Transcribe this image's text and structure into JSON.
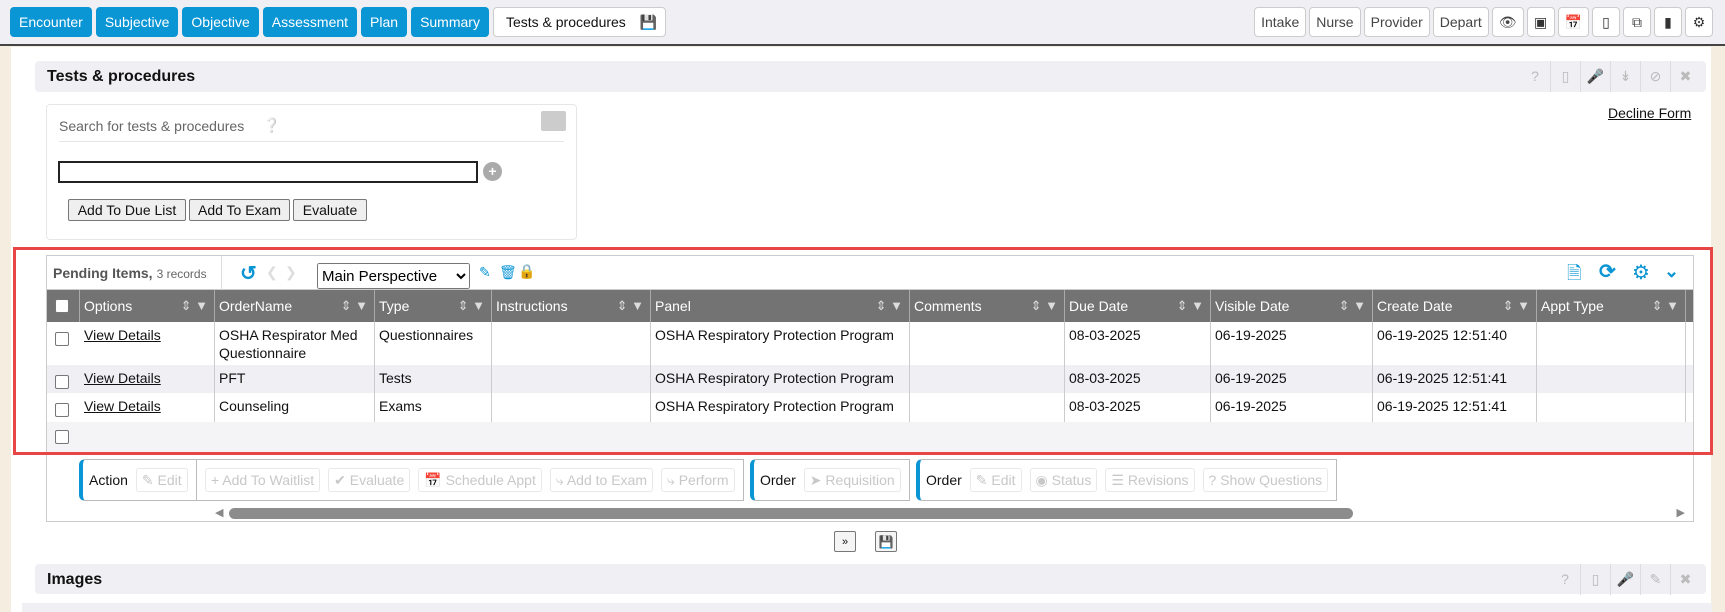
{
  "nav": {
    "tabs": [
      {
        "label": "Encounter"
      },
      {
        "label": "Subjective"
      },
      {
        "label": "Objective"
      },
      {
        "label": "Assessment"
      },
      {
        "label": "Plan"
      },
      {
        "label": "Summary"
      },
      {
        "label": "Tests & procedures"
      }
    ],
    "right_buttons": [
      {
        "label": "Intake"
      },
      {
        "label": "Nurse"
      },
      {
        "label": "Provider"
      },
      {
        "label": "Depart"
      }
    ],
    "right_icons": [
      "eye-icon",
      "archive-icon",
      "calendar-check-icon",
      "book-icon",
      "copy-icon",
      "bookmark-icon",
      "gears-icon"
    ]
  },
  "section": {
    "title": "Tests & procedures",
    "decline_link": "Decline Form",
    "icons": [
      "help-icon",
      "book-icon",
      "microphone-icon",
      "double-chevron-down-icon",
      "ban-icon",
      "close-icon"
    ]
  },
  "search": {
    "label": "Search for tests & procedures",
    "value": "",
    "buttons": [
      "Add To Due List",
      "Add To Exam",
      "Evaluate"
    ]
  },
  "grid": {
    "title": "Pending Items,",
    "count": "3 records",
    "perspective": "Main Perspective",
    "columns": [
      "Options",
      "OrderName",
      "Type",
      "Instructions",
      "Panel",
      "Comments",
      "Due Date",
      "Visible Date",
      "Create Date",
      "Appt Type"
    ],
    "rows": [
      [
        "View Details",
        "OSHA Respirator Med Questionnaire",
        "Questionnaires",
        "",
        "OSHA Respiratory Protection Program",
        "",
        "08-03-2025",
        "06-19-2025",
        "06-19-2025 12:51:40",
        ""
      ],
      [
        "View Details",
        "PFT",
        "Tests",
        "",
        "OSHA Respiratory Protection Program",
        "",
        "08-03-2025",
        "06-19-2025",
        "06-19-2025 12:51:41",
        ""
      ],
      [
        "View Details",
        "Counseling",
        "Exams",
        "",
        "OSHA Respiratory Protection Program",
        "",
        "08-03-2025",
        "06-19-2025",
        "06-19-2025 12:51:41",
        ""
      ]
    ]
  },
  "actions": {
    "action_label": "Action",
    "action_buttons": [
      "Edit",
      "Add To Waitlist",
      "Evaluate",
      "Schedule Appt",
      "Add to Exam",
      "Perform"
    ],
    "order1_label": "Order",
    "order1_buttons": [
      "Requisition"
    ],
    "order2_label": "Order",
    "order2_buttons": [
      "Edit",
      "Status",
      "Revisions",
      "Show Questions"
    ]
  },
  "images": {
    "title": "Images"
  },
  "colors": {
    "accent": "#0a95d4",
    "header": "#737373",
    "highlight": "#e84545"
  }
}
